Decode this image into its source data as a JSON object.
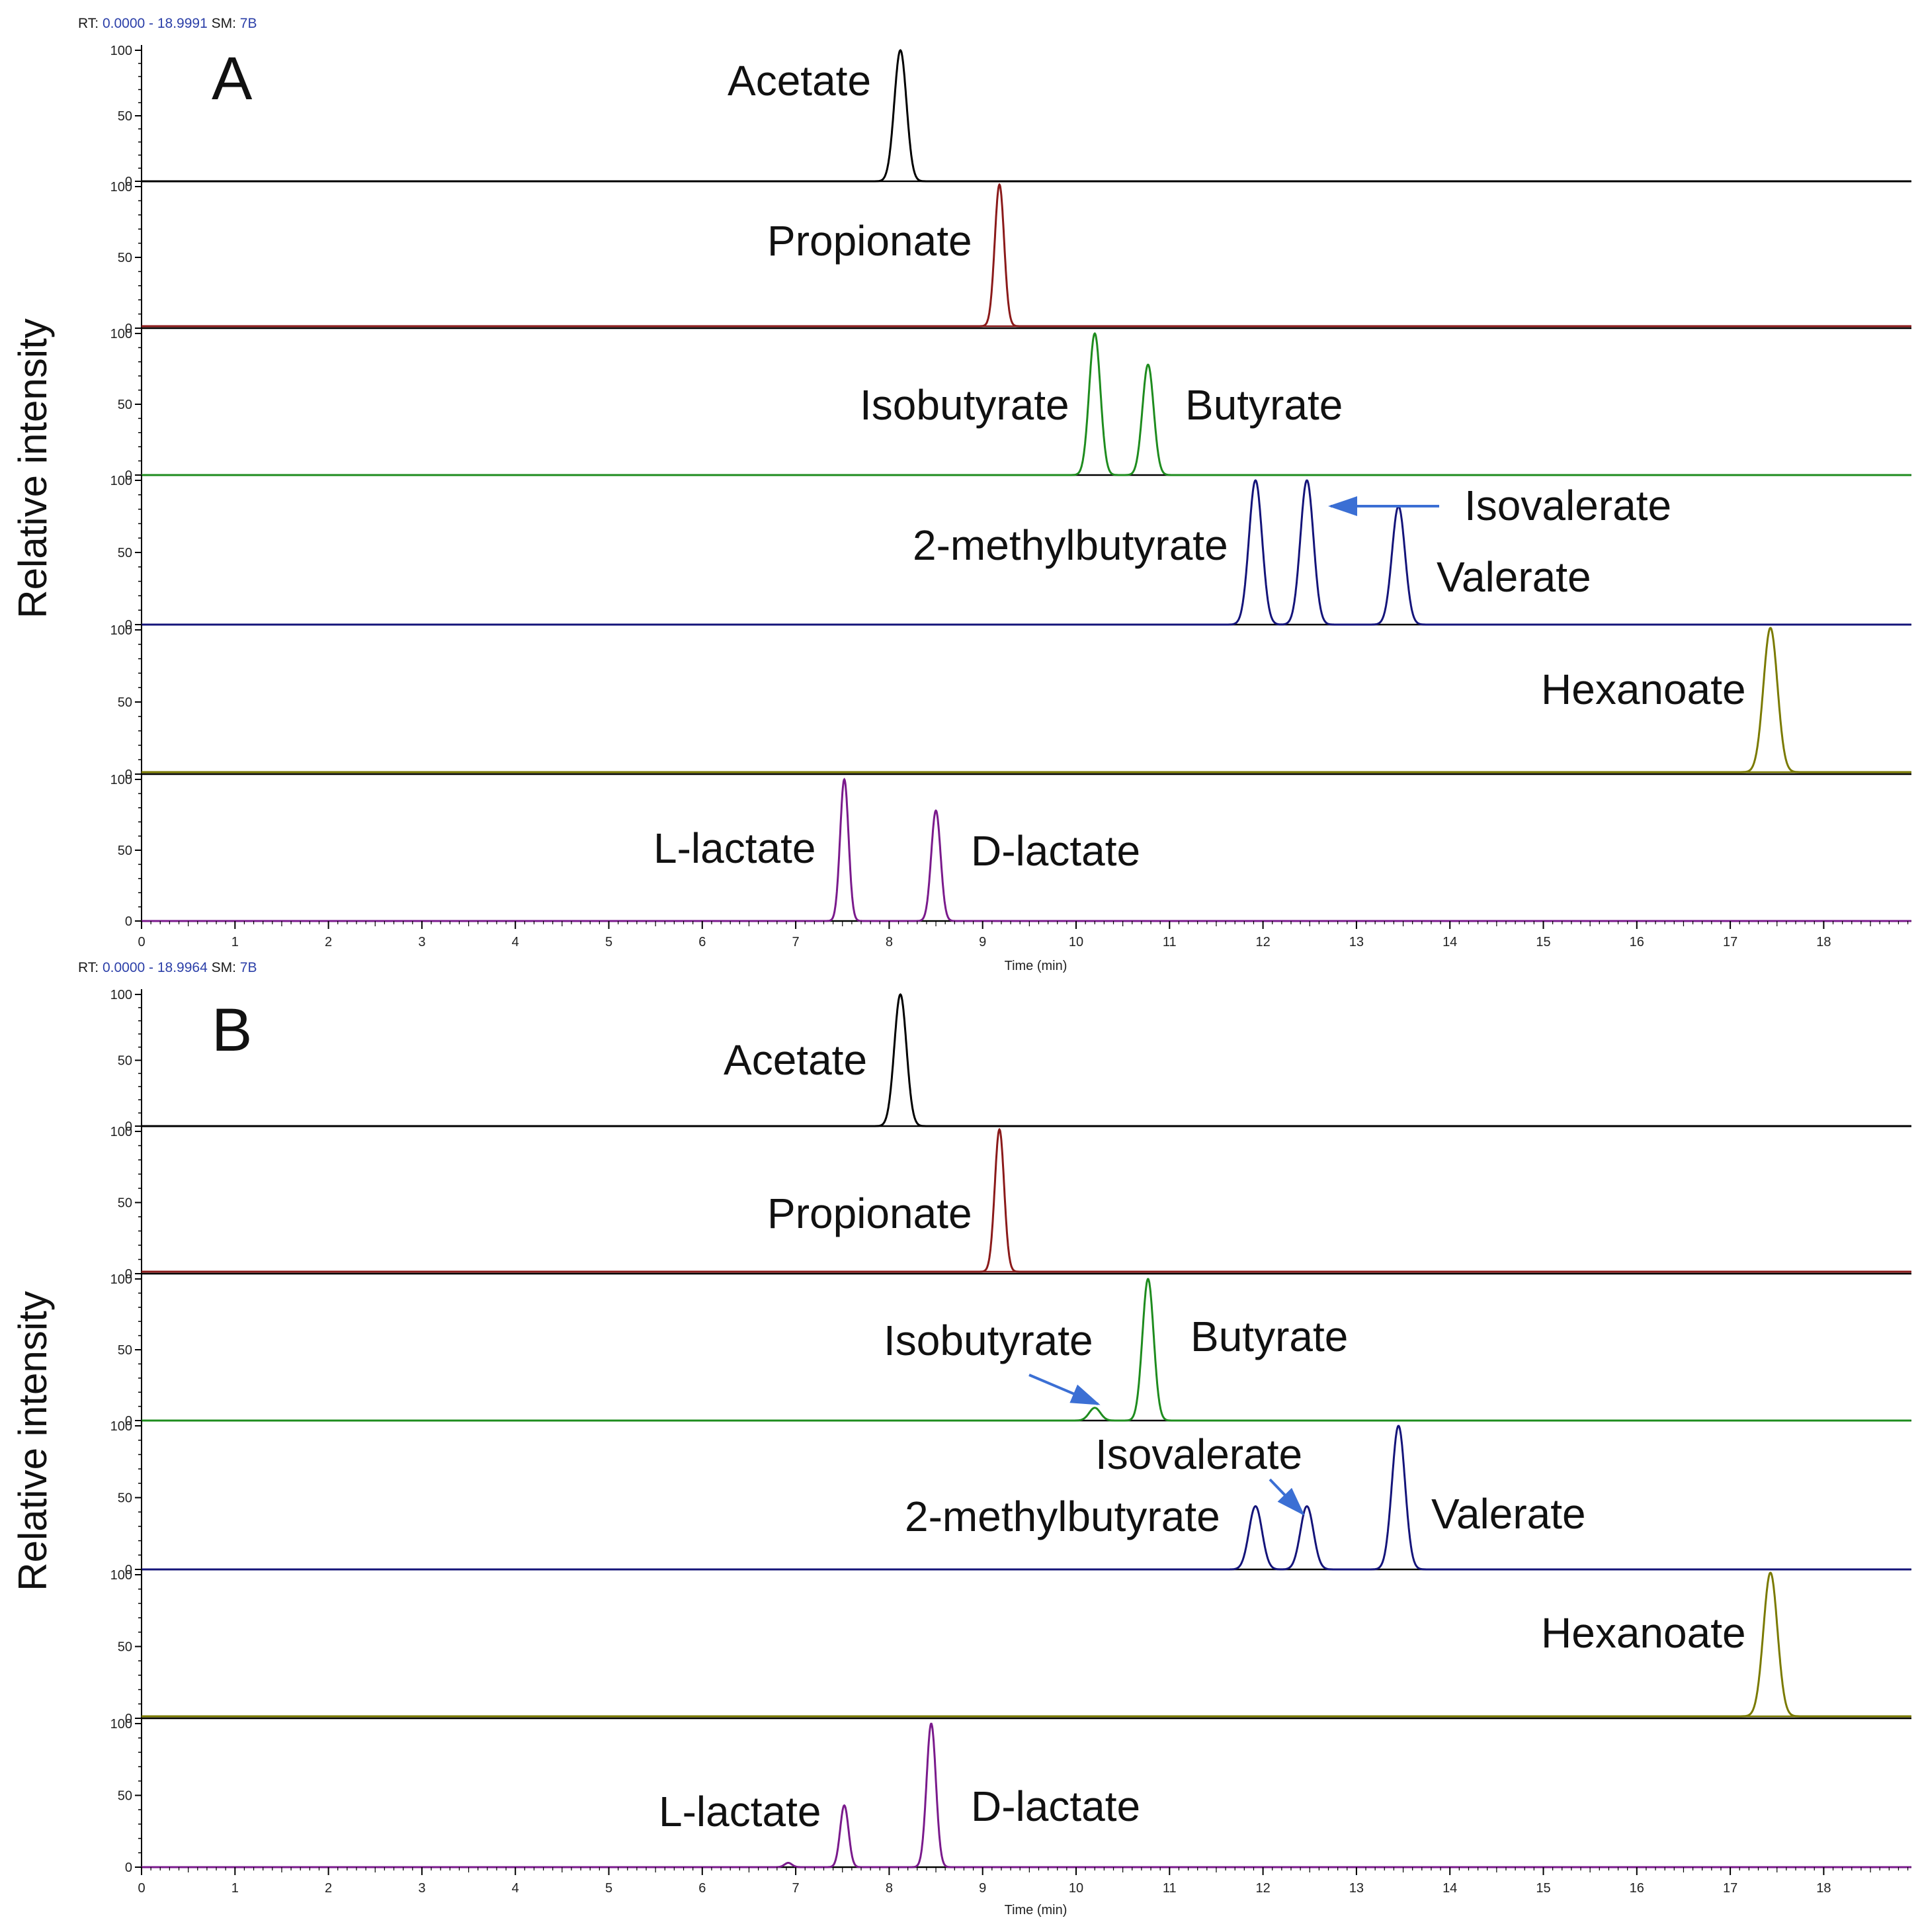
{
  "panels": [
    {
      "letter": "A",
      "header": {
        "rt_label": "RT:",
        "rt_value": "0.0000 - 18.9991",
        "sm_label": "SM:",
        "sm_value": "7B"
      },
      "y_axis_label": "Relative intensity",
      "x_axis_label": "Time (min)",
      "arrow_target": "Isovalerate"
    },
    {
      "letter": "B",
      "header": {
        "rt_label": "RT:",
        "rt_value": "0.0000 - 18.9964",
        "sm_label": "SM:",
        "sm_value": "7B"
      },
      "y_axis_label": "Relative intensity",
      "x_axis_label": "Time (min)",
      "arrow_targets": [
        "Isobutyrate",
        "Isovalerate"
      ]
    }
  ],
  "colors": {
    "acetate": "#000000",
    "propionate": "#8b1a1a",
    "butyrates": "#1e8c1e",
    "valerates": "#14147a",
    "hexanoate": "#7a7a00",
    "lactates": "#7a1a8c",
    "arrow": "#3b6fd4"
  },
  "chart_data": [
    {
      "type": "line",
      "title": "A",
      "xlabel": "Time (min)",
      "ylabel": "Relative intensity",
      "xlim": [
        0,
        19
      ],
      "x_ticks": [
        0,
        1,
        2,
        3,
        4,
        5,
        6,
        7,
        8,
        9,
        10,
        11,
        12,
        13,
        14,
        15,
        16,
        17,
        18
      ],
      "ylim": [
        0,
        100
      ],
      "y_ticks": [
        0,
        50,
        100
      ],
      "traces": [
        {
          "name": "Acetate",
          "color": "#000000",
          "peaks": [
            {
              "label": "Acetate",
              "rt": 8.12,
              "height": 100,
              "width": 0.13
            }
          ]
        },
        {
          "name": "Propionate",
          "color": "#8b1a1a",
          "peaks": [
            {
              "label": "Propionate",
              "rt": 9.18,
              "height": 100,
              "width": 0.1
            }
          ]
        },
        {
          "name": "Isobutyrate / Butyrate",
          "color": "#1e8c1e",
          "peaks": [
            {
              "label": "Isobutyrate",
              "rt": 10.2,
              "height": 100,
              "width": 0.12
            },
            {
              "label": "Butyrate",
              "rt": 10.77,
              "height": 78,
              "width": 0.12
            }
          ]
        },
        {
          "name": "2-methylbutyrate / Isovalerate / Valerate",
          "color": "#14147a",
          "peaks": [
            {
              "label": "2-methylbutyrate",
              "rt": 11.92,
              "height": 100,
              "width": 0.14
            },
            {
              "label": "Isovalerate",
              "rt": 12.47,
              "height": 100,
              "width": 0.14
            },
            {
              "label": "Valerate",
              "rt": 13.45,
              "height": 82,
              "width": 0.14
            }
          ]
        },
        {
          "name": "Hexanoate",
          "color": "#7a7a00",
          "peaks": [
            {
              "label": "Hexanoate",
              "rt": 17.43,
              "height": 100,
              "width": 0.15
            }
          ]
        },
        {
          "name": "L-lactate / D-lactate",
          "color": "#7a1a8c",
          "peaks": [
            {
              "label": "L-lactate",
              "rt": 7.52,
              "height": 100,
              "width": 0.09
            },
            {
              "label": "D-lactate",
              "rt": 8.5,
              "height": 78,
              "width": 0.1
            }
          ]
        }
      ]
    },
    {
      "type": "line",
      "title": "B",
      "xlabel": "Time (min)",
      "ylabel": "Relative intensity",
      "xlim": [
        0,
        19
      ],
      "x_ticks": [
        0,
        1,
        2,
        3,
        4,
        5,
        6,
        7,
        8,
        9,
        10,
        11,
        12,
        13,
        14,
        15,
        16,
        17,
        18
      ],
      "ylim": [
        0,
        100
      ],
      "y_ticks": [
        0,
        50,
        100
      ],
      "traces": [
        {
          "name": "Acetate",
          "color": "#000000",
          "peaks": [
            {
              "label": "Acetate",
              "rt": 8.12,
              "height": 100,
              "width": 0.13
            }
          ]
        },
        {
          "name": "Propionate",
          "color": "#8b1a1a",
          "peaks": [
            {
              "label": "Propionate",
              "rt": 9.18,
              "height": 100,
              "width": 0.1
            }
          ]
        },
        {
          "name": "Isobutyrate / Butyrate",
          "color": "#1e8c1e",
          "peaks": [
            {
              "label": "Isobutyrate",
              "rt": 10.2,
              "height": 9,
              "width": 0.12
            },
            {
              "label": "Butyrate",
              "rt": 10.77,
              "height": 100,
              "width": 0.12
            }
          ]
        },
        {
          "name": "2-methylbutyrate / Isovalerate / Valerate",
          "color": "#14147a",
          "peaks": [
            {
              "label": "2-methylbutyrate",
              "rt": 11.92,
              "height": 44,
              "width": 0.14
            },
            {
              "label": "Isovalerate",
              "rt": 12.47,
              "height": 44,
              "width": 0.14
            },
            {
              "label": "Valerate",
              "rt": 13.45,
              "height": 100,
              "width": 0.14
            }
          ]
        },
        {
          "name": "Hexanoate",
          "color": "#7a7a00",
          "peaks": [
            {
              "label": "Hexanoate",
              "rt": 17.43,
              "height": 100,
              "width": 0.15
            }
          ]
        },
        {
          "name": "L-lactate / D-lactate",
          "color": "#7a1a8c",
          "peaks": [
            {
              "label": "L-lactate",
              "rt": 7.52,
              "height": 43,
              "width": 0.09
            },
            {
              "label": "D-lactate",
              "rt": 8.45,
              "height": 100,
              "width": 0.1
            },
            {
              "label": "",
              "rt": 6.92,
              "height": 3,
              "width": 0.08
            }
          ]
        }
      ]
    }
  ]
}
